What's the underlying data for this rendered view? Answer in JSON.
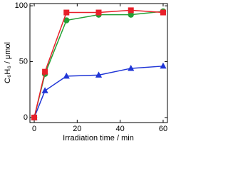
{
  "chart_data": {
    "type": "line",
    "x_label": "Irradiation time / min",
    "y_label": "C₆H₆ / μmol",
    "x": [
      0,
      5,
      15,
      30,
      45,
      60
    ],
    "series": [
      {
        "name": "blue triangles",
        "color": "#1f35d6",
        "marker": "triangle",
        "values": [
          0,
          24,
          37,
          38,
          44,
          46
        ]
      },
      {
        "name": "green circles",
        "color": "#23a035",
        "marker": "circle",
        "values": [
          0,
          39,
          87,
          92,
          92,
          95
        ]
      },
      {
        "name": "red squares",
        "color": "#e8202a",
        "marker": "square",
        "values": [
          0,
          41,
          94,
          94,
          96,
          94
        ]
      }
    ],
    "xlim": [
      -2,
      62
    ],
    "xticks": [
      0,
      20,
      40,
      60
    ],
    "ylim": [
      -4.5,
      102
    ],
    "yticks": [
      0,
      50,
      100
    ]
  }
}
